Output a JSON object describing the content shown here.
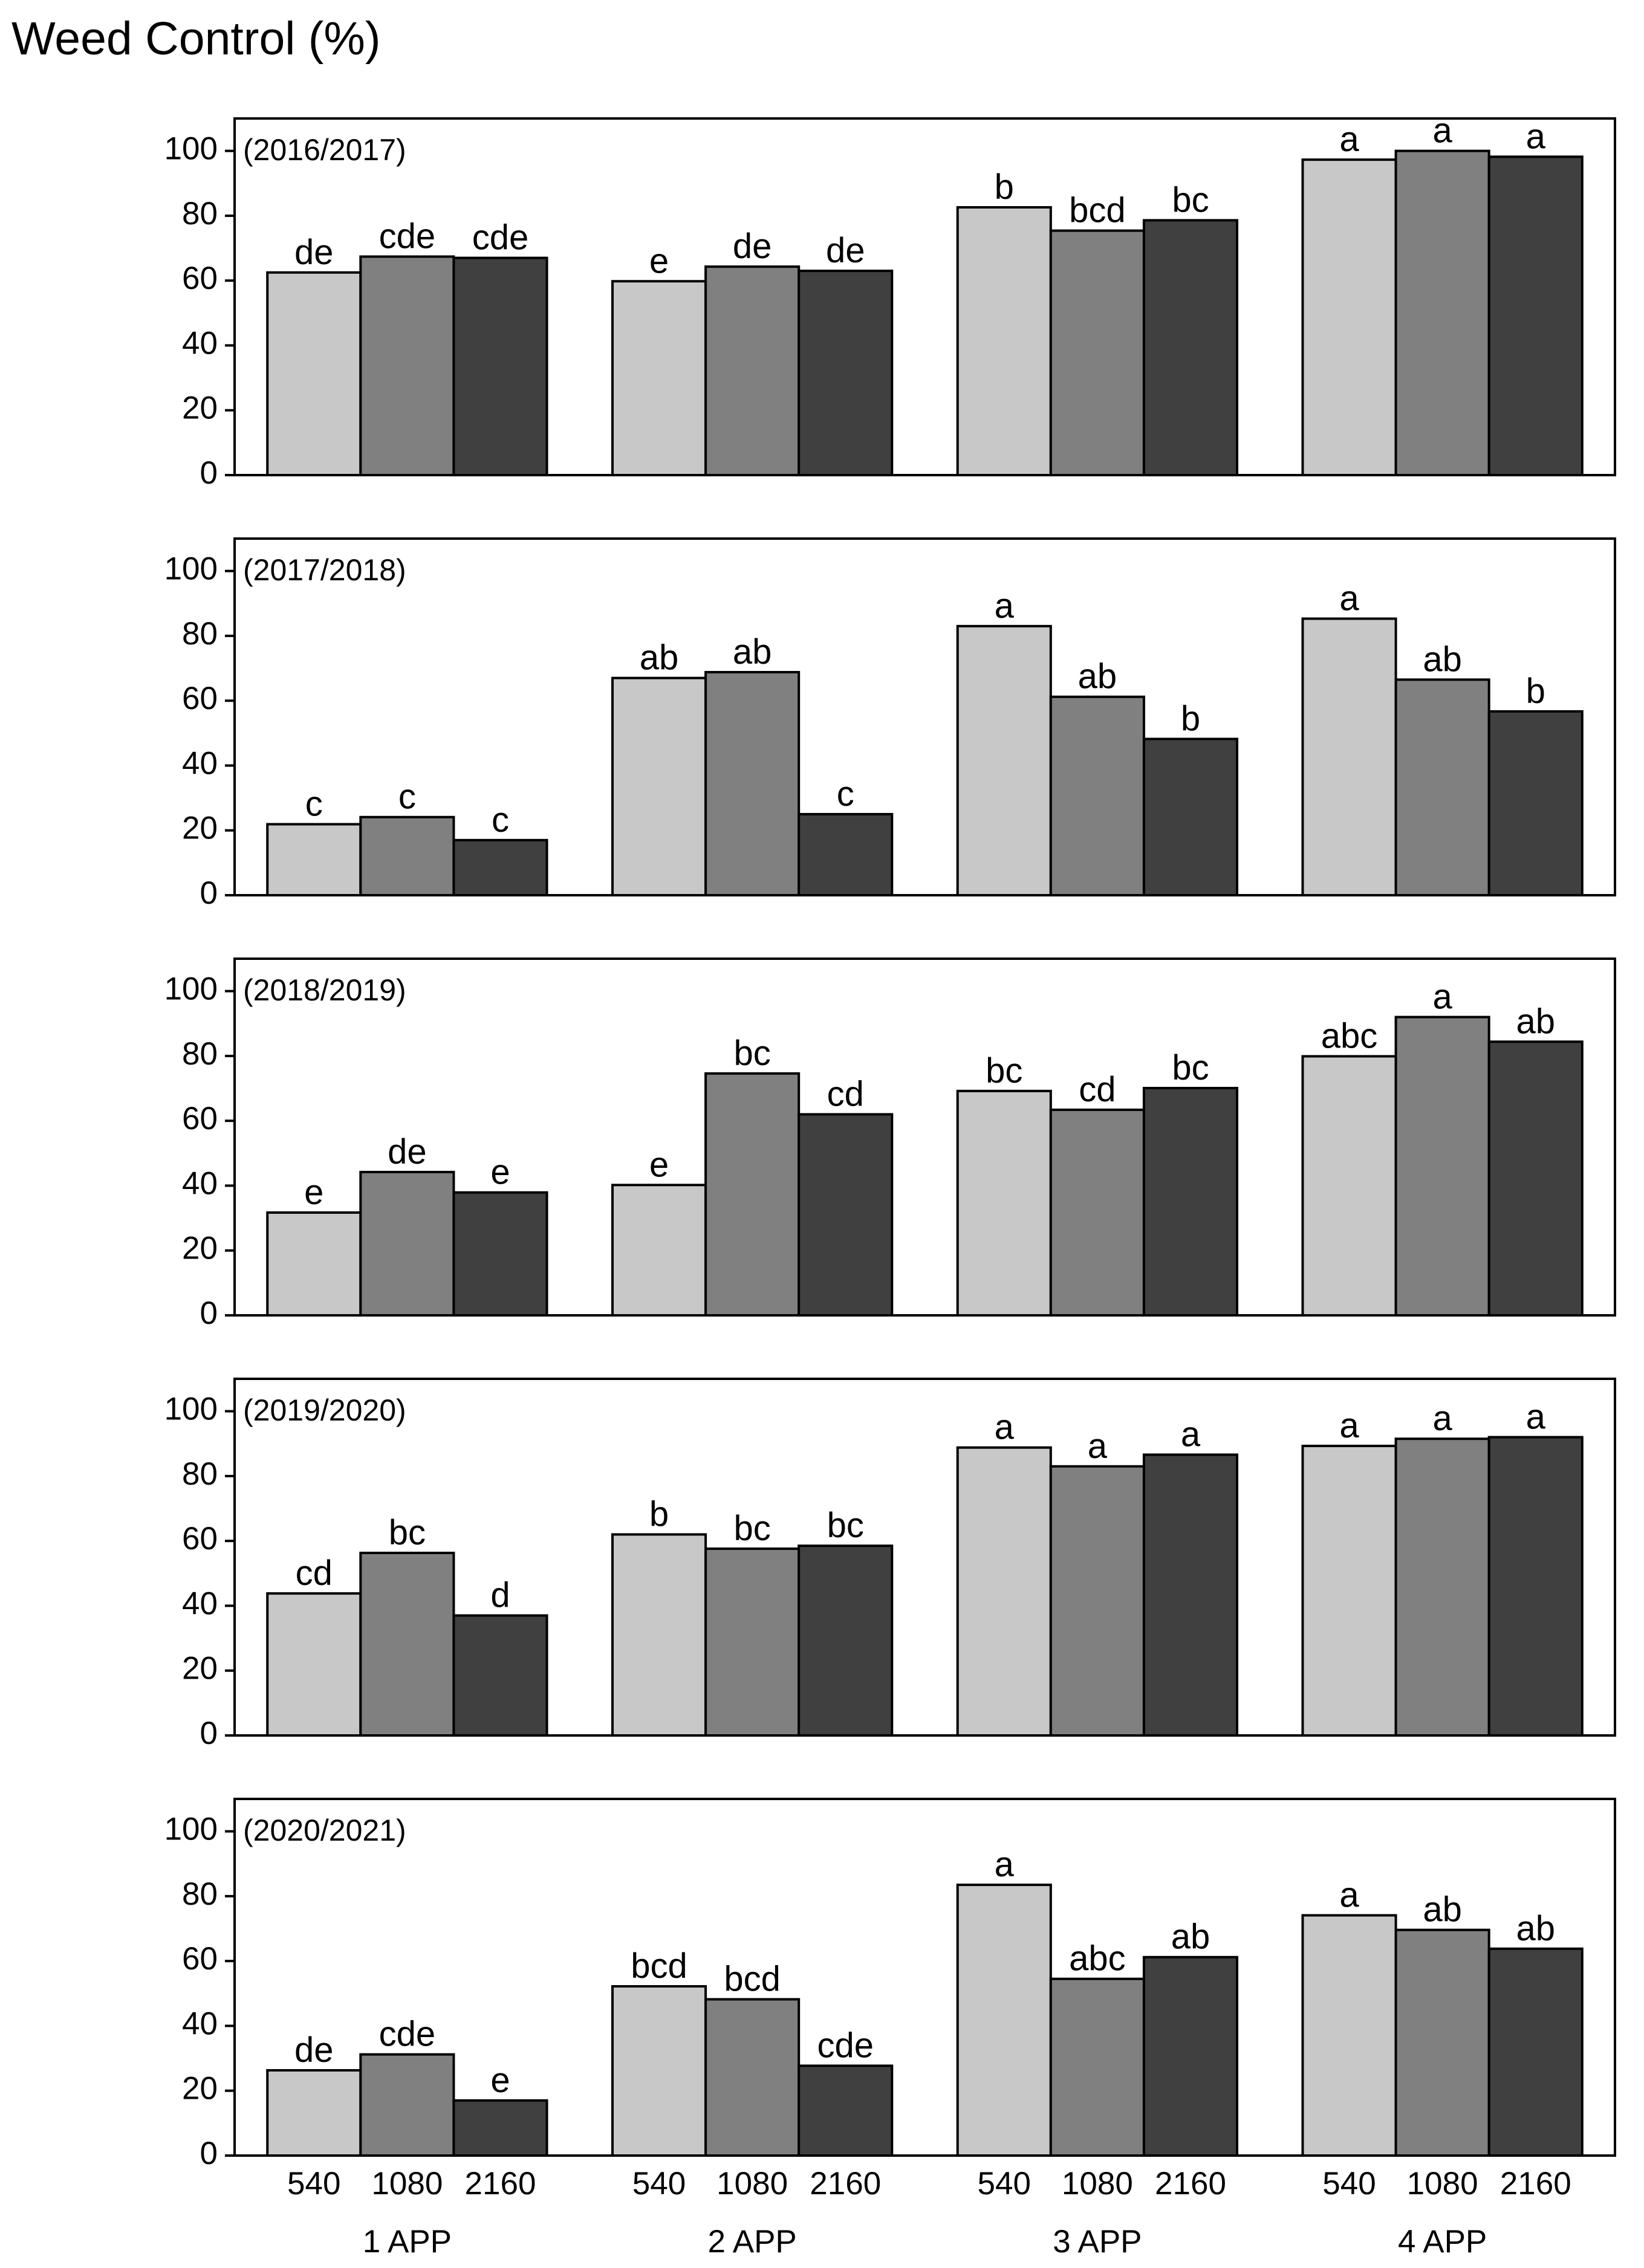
{
  "title": "Weed Control (%)",
  "chart_data": [
    {
      "type": "bar",
      "title": "(2016/2017)",
      "ylim": [
        0,
        110
      ],
      "yticks": [
        0,
        20,
        40,
        60,
        80,
        100
      ],
      "series": [
        {
          "color": "#c8c8c8",
          "values": [
            62.5,
            59.8,
            82.6,
            97.3
          ],
          "labels": [
            "de",
            "e",
            "b",
            "a"
          ]
        },
        {
          "color": "#808080",
          "values": [
            67.4,
            64.3,
            75.4,
            100
          ],
          "labels": [
            "cde",
            "de",
            "bcd",
            "a"
          ]
        },
        {
          "color": "#404040",
          "values": [
            67,
            63,
            78.6,
            98.2
          ],
          "labels": [
            "cde",
            "de",
            "bc",
            "a"
          ]
        }
      ]
    },
    {
      "type": "bar",
      "title": "(2017/2018)",
      "ylim": [
        0,
        110
      ],
      "yticks": [
        0,
        20,
        40,
        60,
        80,
        100
      ],
      "series": [
        {
          "color": "#c8c8c8",
          "values": [
            21.9,
            67,
            83,
            85.3
          ],
          "labels": [
            "c",
            "ab",
            "a",
            "a"
          ]
        },
        {
          "color": "#808080",
          "values": [
            24.1,
            68.8,
            61.2,
            66.5
          ],
          "labels": [
            "c",
            "ab",
            "ab",
            "ab"
          ]
        },
        {
          "color": "#404040",
          "values": [
            17,
            25,
            48.2,
            56.7
          ],
          "labels": [
            "c",
            "c",
            "b",
            "b"
          ]
        }
      ]
    },
    {
      "type": "bar",
      "title": "(2018/2019)",
      "ylim": [
        0,
        110
      ],
      "yticks": [
        0,
        20,
        40,
        60,
        80,
        100
      ],
      "series": [
        {
          "color": "#c8c8c8",
          "values": [
            31.7,
            40.2,
            69.2,
            79.9
          ],
          "labels": [
            "e",
            "e",
            "bc",
            "abc"
          ]
        },
        {
          "color": "#808080",
          "values": [
            44.2,
            74.6,
            63.4,
            92
          ],
          "labels": [
            "de",
            "bc",
            "cd",
            "a"
          ]
        },
        {
          "color": "#404040",
          "values": [
            37.9,
            62,
            70.1,
            84.4
          ],
          "labels": [
            "e",
            "cd",
            "bc",
            "ab"
          ]
        }
      ]
    },
    {
      "type": "bar",
      "title": "(2019/2020)",
      "ylim": [
        0,
        110
      ],
      "yticks": [
        0,
        20,
        40,
        60,
        80,
        100
      ],
      "series": [
        {
          "color": "#c8c8c8",
          "values": [
            43.8,
            62,
            88.8,
            89.3
          ],
          "labels": [
            "cd",
            "b",
            "a",
            "a"
          ]
        },
        {
          "color": "#808080",
          "values": [
            56.3,
            57.6,
            83,
            91.5
          ],
          "labels": [
            "bc",
            "bc",
            "a",
            "a"
          ]
        },
        {
          "color": "#404040",
          "values": [
            37,
            58.5,
            86.6,
            92
          ],
          "labels": [
            "d",
            "bc",
            "a",
            "a"
          ]
        }
      ]
    },
    {
      "type": "bar",
      "title": "(2020/2021)",
      "ylim": [
        0,
        110
      ],
      "yticks": [
        0,
        20,
        40,
        60,
        80,
        100
      ],
      "categories": [
        "1 APP",
        "2 APP",
        "3 APP",
        "4 APP"
      ],
      "series": [
        {
          "name": "540",
          "color": "#c8c8c8",
          "values": [
            26.3,
            52.2,
            83.5,
            74.1
          ],
          "labels": [
            "de",
            "bcd",
            "a",
            "a"
          ]
        },
        {
          "name": "1080",
          "color": "#808080",
          "values": [
            31.2,
            48.2,
            54.5,
            69.6
          ],
          "labels": [
            "cde",
            "bcd",
            "abc",
            "ab"
          ]
        },
        {
          "name": "2160",
          "color": "#404040",
          "values": [
            17,
            27.7,
            61.2,
            63.8
          ],
          "labels": [
            "e",
            "cde",
            "ab",
            "ab"
          ]
        }
      ]
    }
  ]
}
